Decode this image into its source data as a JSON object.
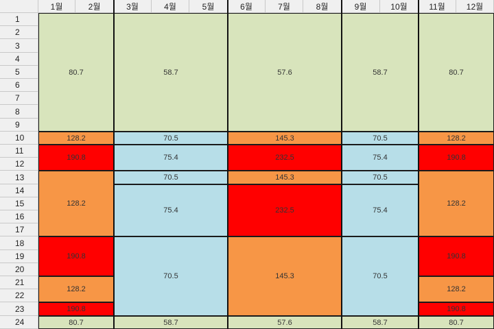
{
  "columns": [
    "1월",
    "2월",
    "3월",
    "4월",
    "5월",
    "6월",
    "7월",
    "8월",
    "9월",
    "10월",
    "11월",
    "12월"
  ],
  "rows": [
    "1",
    "2",
    "3",
    "4",
    "5",
    "6",
    "7",
    "8",
    "9",
    "10",
    "11",
    "12",
    "13",
    "14",
    "15",
    "16",
    "17",
    "18",
    "19",
    "20",
    "21",
    "22",
    "23",
    "24"
  ],
  "colors": {
    "green": "#d8e4bc",
    "orange": "#f79646",
    "red": "#ff0000",
    "blue": "#b7dee8"
  },
  "blocks": [
    {
      "id": "g1",
      "col": [
        0,
        1
      ],
      "row": [
        0,
        8
      ],
      "color": "green",
      "value": "80.7"
    },
    {
      "id": "g2",
      "col": [
        2,
        4
      ],
      "row": [
        0,
        8
      ],
      "color": "green",
      "value": "58.7"
    },
    {
      "id": "g3",
      "col": [
        5,
        7
      ],
      "row": [
        0,
        8
      ],
      "color": "green",
      "value": "57.6"
    },
    {
      "id": "g4",
      "col": [
        8,
        9
      ],
      "row": [
        0,
        8
      ],
      "color": "green",
      "value": "58.7"
    },
    {
      "id": "g5",
      "col": [
        10,
        11
      ],
      "row": [
        0,
        8
      ],
      "color": "green",
      "value": "80.7"
    },
    {
      "id": "r10a",
      "col": [
        0,
        1
      ],
      "row": [
        9,
        9
      ],
      "color": "orange",
      "value": "128.2"
    },
    {
      "id": "r10b",
      "col": [
        2,
        4
      ],
      "row": [
        9,
        9
      ],
      "color": "blue",
      "value": "70.5"
    },
    {
      "id": "r10c",
      "col": [
        5,
        7
      ],
      "row": [
        9,
        9
      ],
      "color": "orange",
      "value": "145.3"
    },
    {
      "id": "r10d",
      "col": [
        8,
        9
      ],
      "row": [
        9,
        9
      ],
      "color": "blue",
      "value": "70.5"
    },
    {
      "id": "r10e",
      "col": [
        10,
        11
      ],
      "row": [
        9,
        9
      ],
      "color": "orange",
      "value": "128.2"
    },
    {
      "id": "r11a",
      "col": [
        0,
        1
      ],
      "row": [
        10,
        11
      ],
      "color": "red",
      "value": "190.8"
    },
    {
      "id": "r11b",
      "col": [
        2,
        4
      ],
      "row": [
        10,
        11
      ],
      "color": "blue",
      "value": "75.4"
    },
    {
      "id": "r11c",
      "col": [
        5,
        7
      ],
      "row": [
        10,
        11
      ],
      "color": "red",
      "value": "232.5"
    },
    {
      "id": "r11d",
      "col": [
        8,
        9
      ],
      "row": [
        10,
        11
      ],
      "color": "blue",
      "value": "75.4"
    },
    {
      "id": "r11e",
      "col": [
        10,
        11
      ],
      "row": [
        10,
        11
      ],
      "color": "red",
      "value": "190.8"
    },
    {
      "id": "r13a",
      "col": [
        0,
        1
      ],
      "row": [
        12,
        16
      ],
      "color": "orange",
      "value": "128.2"
    },
    {
      "id": "r13b",
      "col": [
        2,
        4
      ],
      "row": [
        12,
        12
      ],
      "color": "blue",
      "value": "70.5"
    },
    {
      "id": "r13c",
      "col": [
        5,
        7
      ],
      "row": [
        12,
        12
      ],
      "color": "orange",
      "value": "145.3"
    },
    {
      "id": "r13d",
      "col": [
        8,
        9
      ],
      "row": [
        12,
        12
      ],
      "color": "blue",
      "value": "70.5"
    },
    {
      "id": "r13e",
      "col": [
        10,
        11
      ],
      "row": [
        12,
        16
      ],
      "color": "orange",
      "value": "128.2"
    },
    {
      "id": "r14b",
      "col": [
        2,
        4
      ],
      "row": [
        13,
        16
      ],
      "color": "blue",
      "value": "75.4"
    },
    {
      "id": "r14c",
      "col": [
        5,
        7
      ],
      "row": [
        13,
        16
      ],
      "color": "red",
      "value": "232.5"
    },
    {
      "id": "r14d",
      "col": [
        8,
        9
      ],
      "row": [
        13,
        16
      ],
      "color": "blue",
      "value": "75.4"
    },
    {
      "id": "r18a",
      "col": [
        0,
        1
      ],
      "row": [
        17,
        19
      ],
      "color": "red",
      "value": "190.8"
    },
    {
      "id": "r18b",
      "col": [
        2,
        4
      ],
      "row": [
        17,
        22
      ],
      "color": "blue",
      "value": "70.5"
    },
    {
      "id": "r18c",
      "col": [
        5,
        7
      ],
      "row": [
        17,
        22
      ],
      "color": "orange",
      "value": "145.3"
    },
    {
      "id": "r18d",
      "col": [
        8,
        9
      ],
      "row": [
        17,
        22
      ],
      "color": "blue",
      "value": "70.5"
    },
    {
      "id": "r18e",
      "col": [
        10,
        11
      ],
      "row": [
        17,
        19
      ],
      "color": "red",
      "value": "190.8"
    },
    {
      "id": "r21a",
      "col": [
        0,
        1
      ],
      "row": [
        20,
        21
      ],
      "color": "orange",
      "value": "128.2"
    },
    {
      "id": "r21e",
      "col": [
        10,
        11
      ],
      "row": [
        20,
        21
      ],
      "color": "orange",
      "value": "128.2"
    },
    {
      "id": "r23a",
      "col": [
        0,
        1
      ],
      "row": [
        22,
        22
      ],
      "color": "red",
      "value": "190.8"
    },
    {
      "id": "r23e",
      "col": [
        10,
        11
      ],
      "row": [
        22,
        22
      ],
      "color": "red",
      "value": "190.8"
    },
    {
      "id": "r24a",
      "col": [
        0,
        1
      ],
      "row": [
        23,
        23
      ],
      "color": "green",
      "value": "80.7"
    },
    {
      "id": "r24b",
      "col": [
        2,
        4
      ],
      "row": [
        23,
        23
      ],
      "color": "green",
      "value": "58.7"
    },
    {
      "id": "r24c",
      "col": [
        5,
        7
      ],
      "row": [
        23,
        23
      ],
      "color": "green",
      "value": "57.6"
    },
    {
      "id": "r24d",
      "col": [
        8,
        9
      ],
      "row": [
        23,
        23
      ],
      "color": "green",
      "value": "58.7"
    },
    {
      "id": "r24e",
      "col": [
        10,
        11
      ],
      "row": [
        23,
        23
      ],
      "color": "green",
      "value": "80.7"
    }
  ]
}
